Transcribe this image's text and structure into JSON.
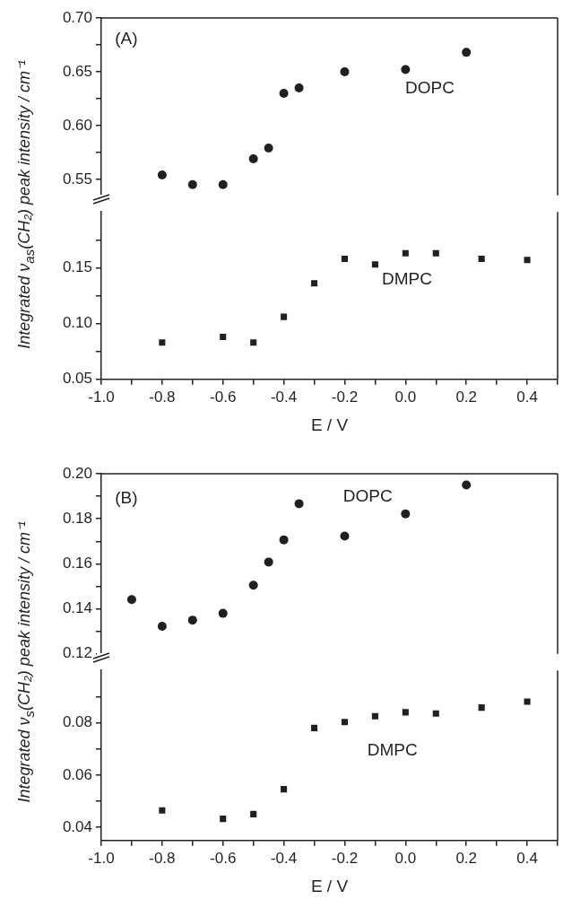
{
  "chart_data": [
    {
      "type": "scatter",
      "ylabel": "Integrated ν$_{as}$(CH₂) peak intensity / cm⁻¹",
      "marker": "circle",
      "tick_labels": "y",
      "xlim": [
        -1.0,
        0.5
      ],
      "ylim": [
        0.535,
        0.7
      ],
      "yticks": [
        {
          "value": 0.55,
          "label": "0.55"
        },
        {
          "value": 0.575,
          "label": null
        },
        {
          "value": 0.6,
          "label": "0.60"
        },
        {
          "value": 0.625,
          "label": null
        },
        {
          "value": 0.65,
          "label": "0.65"
        },
        {
          "value": 0.675,
          "label": null
        },
        {
          "value": 0.7,
          "label": "0.70"
        }
      ],
      "x": [
        -0.8,
        -0.7,
        -0.6,
        -0.5,
        -0.45,
        -0.4,
        -0.35,
        -0.2,
        0.0,
        0.2
      ],
      "series": [
        {
          "color": "#231f20",
          "values": [
            0.554,
            0.545,
            0.545,
            0.569,
            0.579,
            0.63,
            0.635,
            0.65,
            0.652,
            0.668
          ]
        }
      ],
      "annotations": [
        "(A)",
        "DOPC"
      ]
    },
    {
      "type": "scatter",
      "xlabel": "E / V",
      "marker": "square",
      "xlim": [
        -1.0,
        0.5
      ],
      "ylim": [
        0.05,
        0.2
      ],
      "xticks": [
        {
          "value": -1.0,
          "label": "-1.0"
        },
        {
          "value": -0.9,
          "label": null
        },
        {
          "value": -0.8,
          "label": "-0.8"
        },
        {
          "value": -0.7,
          "label": null
        },
        {
          "value": -0.6,
          "label": "-0.6"
        },
        {
          "value": -0.5,
          "label": null
        },
        {
          "value": -0.4,
          "label": "-0.4"
        },
        {
          "value": -0.3,
          "label": null
        },
        {
          "value": -0.2,
          "label": "-0.2"
        },
        {
          "value": -0.1,
          "label": null
        },
        {
          "value": 0.0,
          "label": "0.0"
        },
        {
          "value": 0.1,
          "label": null
        },
        {
          "value": 0.2,
          "label": "0.2"
        },
        {
          "value": 0.3,
          "label": null
        },
        {
          "value": 0.4,
          "label": "0.4"
        },
        {
          "value": 0.5,
          "label": null
        }
      ],
      "yticks": [
        {
          "value": 0.05,
          "label": "0.05"
        },
        {
          "value": 0.075,
          "label": null
        },
        {
          "value": 0.1,
          "label": "0.10"
        },
        {
          "value": 0.125,
          "label": null
        },
        {
          "value": 0.15,
          "label": "0.15"
        },
        {
          "value": 0.175,
          "label": null
        }
      ],
      "x": [
        -0.8,
        -0.6,
        -0.5,
        -0.4,
        -0.3,
        -0.2,
        -0.1,
        0.0,
        0.1,
        0.25,
        0.4
      ],
      "series": [
        {
          "color": "#231f20",
          "values": [
            0.083,
            0.088,
            0.083,
            0.106,
            0.136,
            0.158,
            0.153,
            0.163,
            0.163,
            0.158,
            0.157
          ]
        }
      ],
      "annotations": [
        "DMPC"
      ]
    },
    {
      "type": "scatter",
      "ylabel": "Integrated ν$_{s}$(CH₂) peak intensity / cm⁻¹",
      "marker": "circle",
      "tick_labels": "y",
      "xlim": [
        -1.0,
        0.5
      ],
      "ylim": [
        0.12,
        0.2
      ],
      "yticks": [
        {
          "value": 0.12,
          "label": "0.12"
        },
        {
          "value": 0.13,
          "label": null
        },
        {
          "value": 0.14,
          "label": "0.14"
        },
        {
          "value": 0.15,
          "label": null
        },
        {
          "value": 0.16,
          "label": "0.16"
        },
        {
          "value": 0.17,
          "label": null
        },
        {
          "value": 0.18,
          "label": "0.18"
        },
        {
          "value": 0.19,
          "label": null
        },
        {
          "value": 0.2,
          "label": "0.20"
        }
      ],
      "x": [
        -0.9,
        -0.8,
        -0.7,
        -0.6,
        -0.5,
        -0.45,
        -0.4,
        -0.35,
        -0.2,
        0.0,
        0.2
      ],
      "series": [
        {
          "color": "#231f20",
          "values": [
            0.1441,
            0.1323,
            0.135,
            0.138,
            0.1505,
            0.1608,
            0.1706,
            0.1867,
            0.1723,
            0.1822,
            0.195
          ]
        }
      ],
      "annotations": [
        "(B)",
        "DOPC"
      ]
    },
    {
      "type": "scatter",
      "xlabel": "E / V",
      "marker": "square",
      "xlim": [
        -1.0,
        0.5
      ],
      "ylim": [
        0.035,
        0.1
      ],
      "xticks": [
        {
          "value": -1.0,
          "label": "-1.0"
        },
        {
          "value": -0.9,
          "label": null
        },
        {
          "value": -0.8,
          "label": "-0.8"
        },
        {
          "value": -0.7,
          "label": null
        },
        {
          "value": -0.6,
          "label": "-0.6"
        },
        {
          "value": -0.5,
          "label": null
        },
        {
          "value": -0.4,
          "label": "-0.4"
        },
        {
          "value": -0.3,
          "label": null
        },
        {
          "value": -0.2,
          "label": "-0.2"
        },
        {
          "value": -0.1,
          "label": null
        },
        {
          "value": 0.0,
          "label": "0.0"
        },
        {
          "value": 0.1,
          "label": null
        },
        {
          "value": 0.2,
          "label": "0.2"
        },
        {
          "value": 0.3,
          "label": null
        },
        {
          "value": 0.4,
          "label": "0.4"
        },
        {
          "value": 0.5,
          "label": null
        }
      ],
      "yticks": [
        {
          "value": 0.04,
          "label": "0.04"
        },
        {
          "value": 0.05,
          "label": null
        },
        {
          "value": 0.06,
          "label": "0.06"
        },
        {
          "value": 0.07,
          "label": null
        },
        {
          "value": 0.08,
          "label": "0.08"
        },
        {
          "value": 0.09,
          "label": null
        }
      ],
      "x": [
        -0.8,
        -0.6,
        -0.5,
        -0.4,
        -0.3,
        -0.2,
        -0.1,
        0.0,
        0.1,
        0.25,
        0.4
      ],
      "series": [
        {
          "color": "#231f20",
          "values": [
            0.0465,
            0.0433,
            0.0451,
            0.0546,
            0.078,
            0.0803,
            0.0825,
            0.084,
            0.0835,
            0.0858,
            0.0881
          ]
        }
      ],
      "annotations": [
        "DMPC"
      ]
    }
  ]
}
